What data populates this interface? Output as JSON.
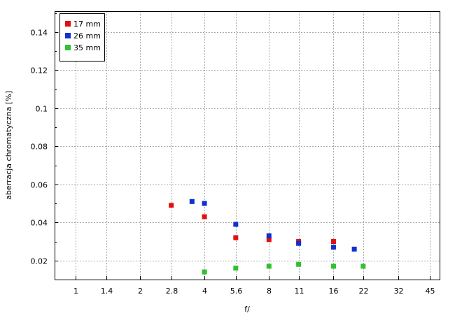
{
  "chart_data": {
    "type": "scatter",
    "xlabel": "f/",
    "ylabel": "aberracja chromatyczna [%]",
    "x_scale": "log",
    "x_ticks": [
      "1",
      "1.4",
      "2",
      "2.8",
      "4",
      "5.6",
      "8",
      "11",
      "16",
      "22",
      "32",
      "45"
    ],
    "y_ticks": [
      "0.02",
      "0.04",
      "0.06",
      "0.08",
      "0.1",
      "0.12",
      "0.14"
    ],
    "xlim": [
      0.8,
      50
    ],
    "ylim": [
      0.01,
      0.151
    ],
    "grid": true,
    "legend_position": "top-left",
    "series": [
      {
        "name": "17 mm",
        "color": "#e01010",
        "points": [
          [
            2.8,
            0.049
          ],
          [
            4,
            0.043
          ],
          [
            5.6,
            0.032
          ],
          [
            8,
            0.031
          ],
          [
            11,
            0.03
          ],
          [
            16,
            0.03
          ]
        ]
      },
      {
        "name": "26 mm",
        "color": "#1030d0",
        "points": [
          [
            3.5,
            0.051
          ],
          [
            4,
            0.05
          ],
          [
            5.6,
            0.039
          ],
          [
            8,
            0.033
          ],
          [
            11,
            0.029
          ],
          [
            16,
            0.027
          ],
          [
            20,
            0.026
          ]
        ]
      },
      {
        "name": "35 mm",
        "color": "#30c030",
        "points": [
          [
            4,
            0.014
          ],
          [
            5.6,
            0.016
          ],
          [
            8,
            0.017
          ],
          [
            11,
            0.018
          ],
          [
            16,
            0.017
          ],
          [
            22,
            0.017
          ]
        ]
      }
    ]
  }
}
